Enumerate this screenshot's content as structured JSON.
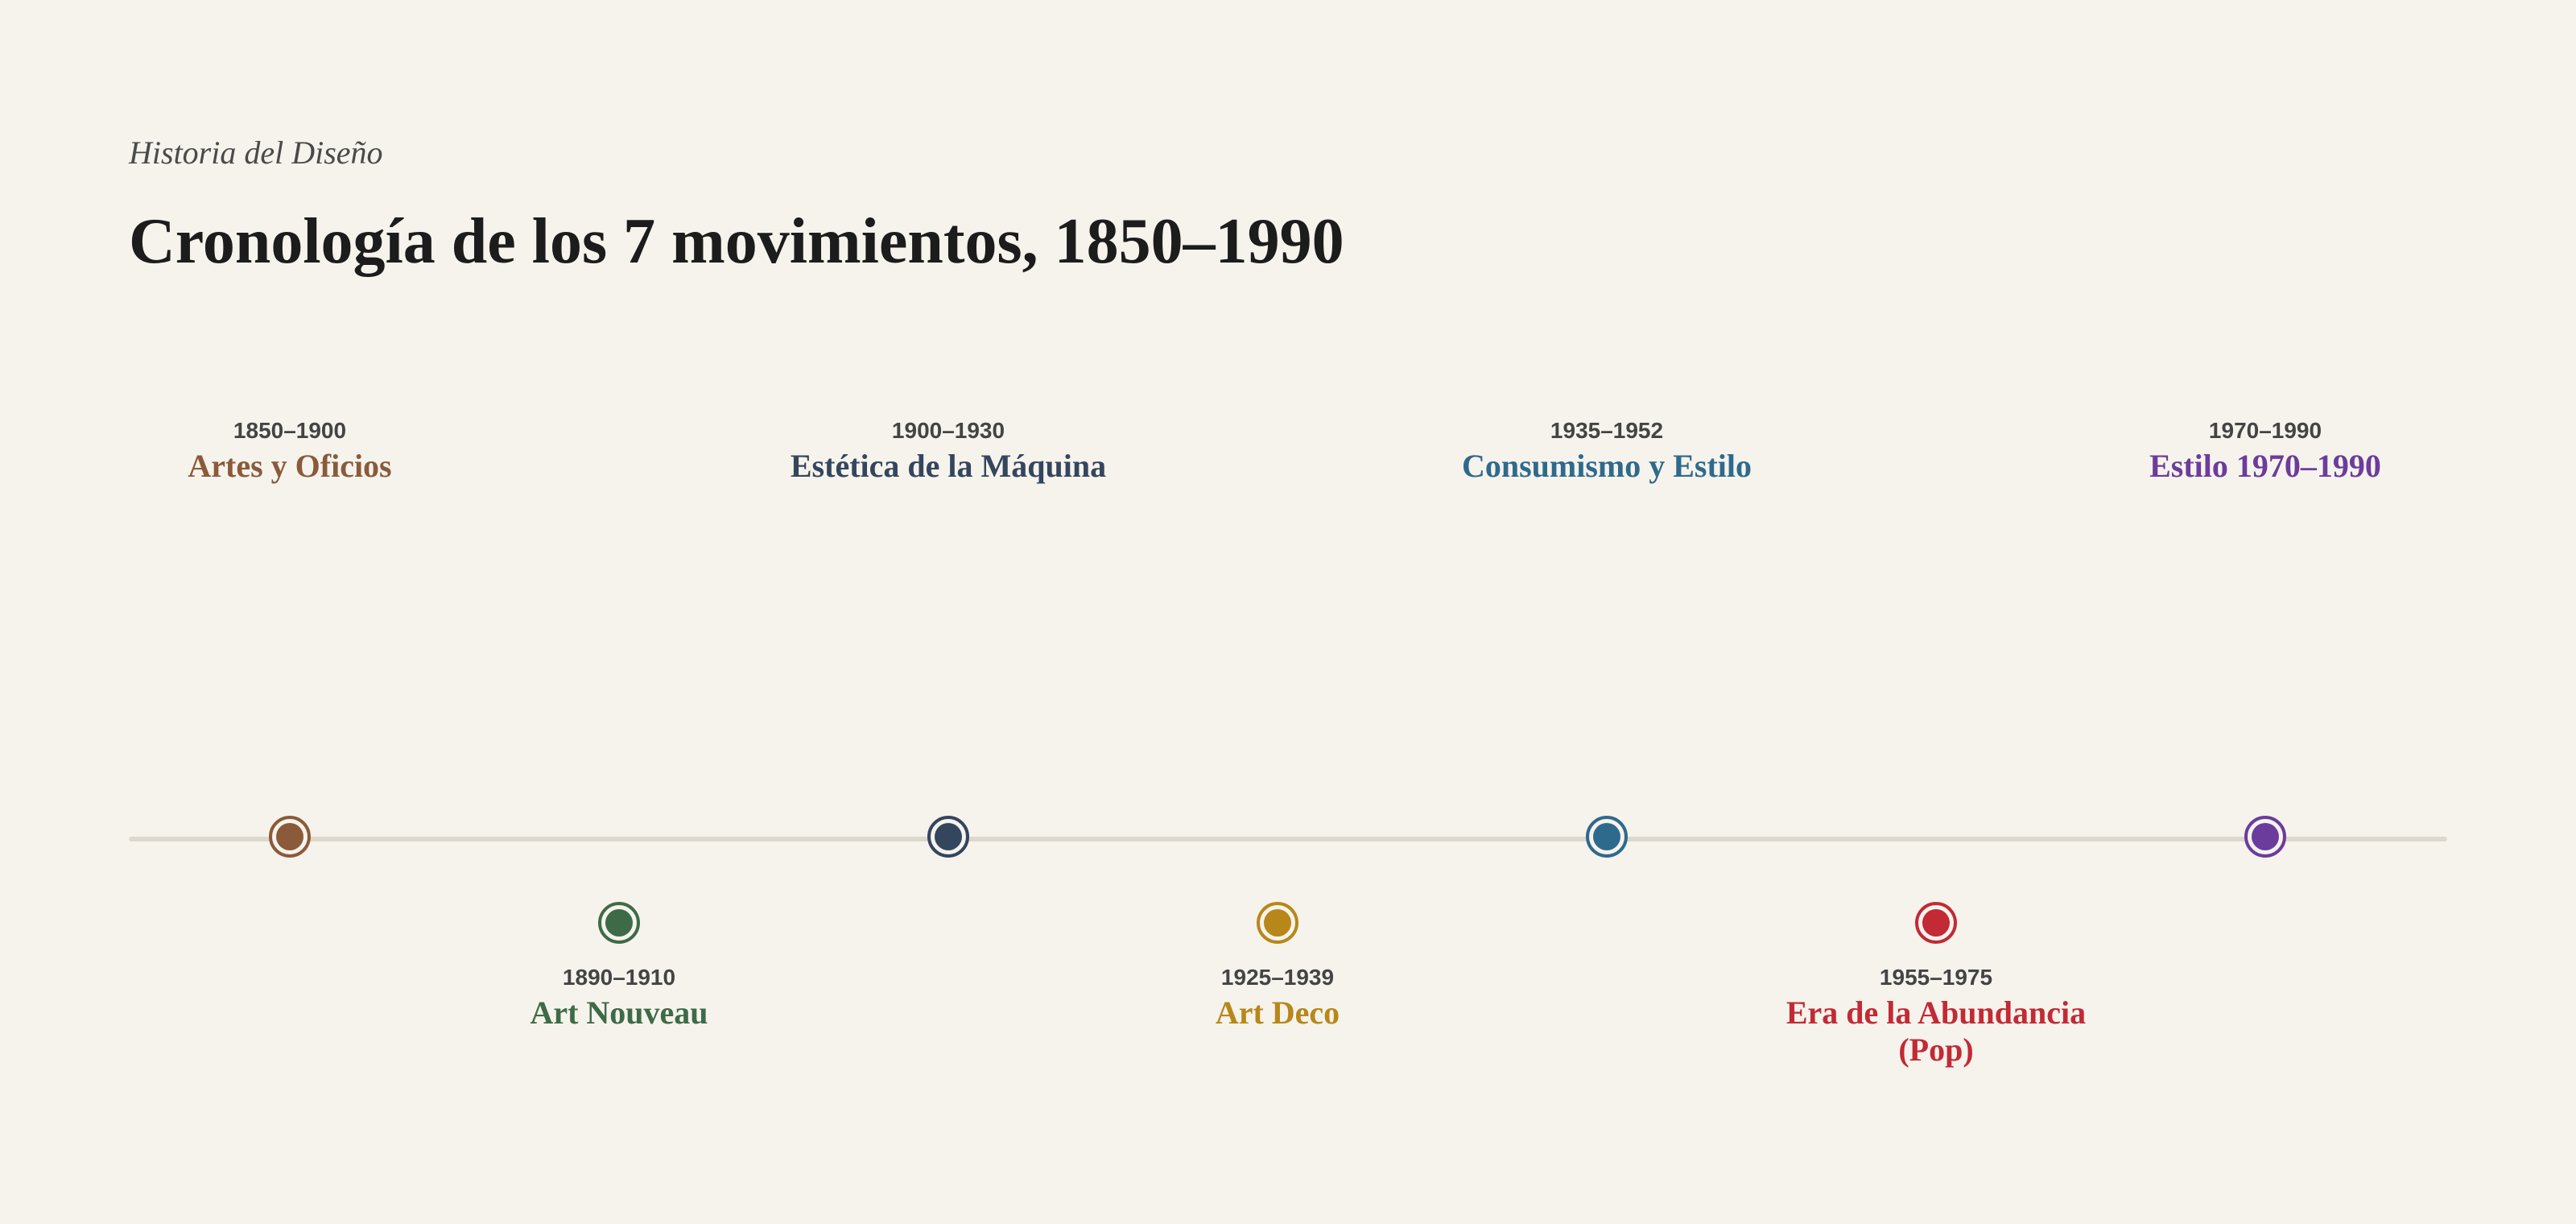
{
  "header": {
    "subtitle": "Historia del Diseño",
    "title": "Cronología de los 7 movimientos, 1850–1990"
  },
  "timeline": {
    "events": [
      {
        "years": "1850–1900",
        "name": "Artes y Oficios",
        "color": "#8a5a3a",
        "side": "above"
      },
      {
        "years": "1890–1910",
        "name": "Art Nouveau",
        "color": "#3e6b47",
        "side": "below"
      },
      {
        "years": "1900–1930",
        "name": "Estética de la Máquina",
        "color": "#34465e",
        "side": "above"
      },
      {
        "years": "1925–1939",
        "name": "Art Deco",
        "color": "#b8871a",
        "side": "below"
      },
      {
        "years": "1935–1952",
        "name": "Consumismo y Estilo",
        "color": "#2e6a8c",
        "side": "above"
      },
      {
        "years": "1955–1975",
        "name": "Era de la Abundancia (Pop)",
        "color": "#c22a35",
        "side": "below"
      },
      {
        "years": "1970–1990",
        "name": "Estilo 1970–1990",
        "color": "#6b3c9c",
        "side": "above"
      }
    ]
  }
}
